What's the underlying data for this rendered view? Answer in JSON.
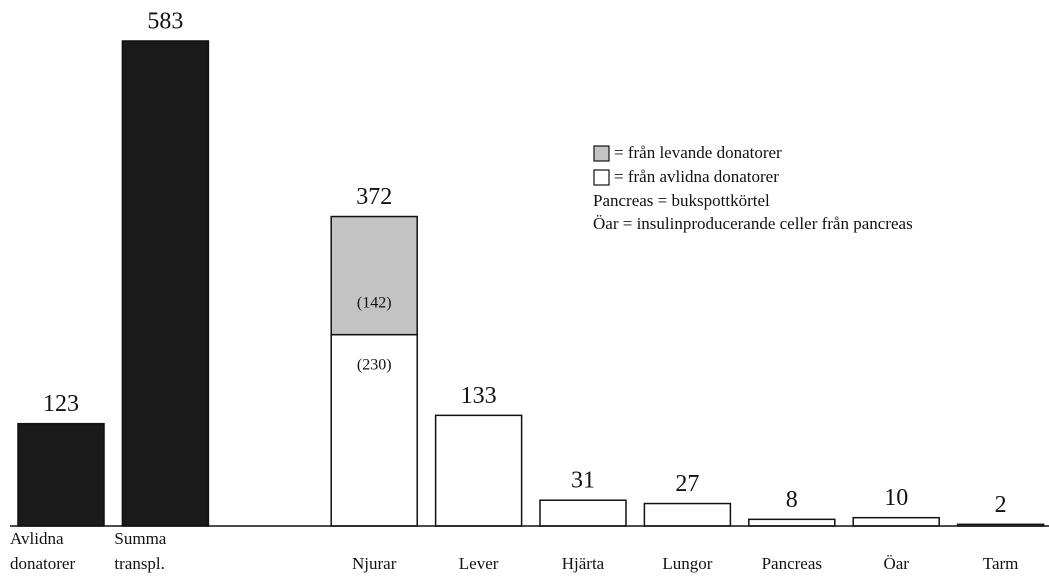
{
  "chart_data": {
    "type": "bar",
    "categories": [
      "Avlidna donatorer",
      "Summa transpl.",
      null,
      "Njurar",
      "Lever",
      "Hjärta",
      "Lungor",
      "Pancreas",
      "Öar",
      "Tarm"
    ],
    "totals": [
      123,
      583,
      null,
      372,
      133,
      31,
      27,
      8,
      10,
      2
    ],
    "series": [
      {
        "color": "#1a1a1a",
        "values": [
          123,
          583,
          null,
          null,
          null,
          null,
          null,
          null,
          null,
          null
        ]
      },
      {
        "name": "= från avlidna donatorer",
        "color": "#ffffff",
        "values": [
          null,
          null,
          null,
          230,
          133,
          31,
          27,
          8,
          10,
          2
        ],
        "value_labels": [
          null,
          null,
          null,
          "(230)",
          null,
          null,
          null,
          null,
          null,
          null
        ]
      },
      {
        "name": "= från levande donatorer",
        "color": "#c4c4c4",
        "values": [
          null,
          null,
          null,
          142,
          null,
          null,
          null,
          null,
          null,
          null
        ],
        "value_labels": [
          null,
          null,
          null,
          "(142)",
          null,
          null,
          null,
          null,
          null,
          null
        ]
      }
    ],
    "notes": [
      "Pancreas = bukspottkörtel",
      "Öar = insulinproducerande celler från pancreas"
    ]
  }
}
